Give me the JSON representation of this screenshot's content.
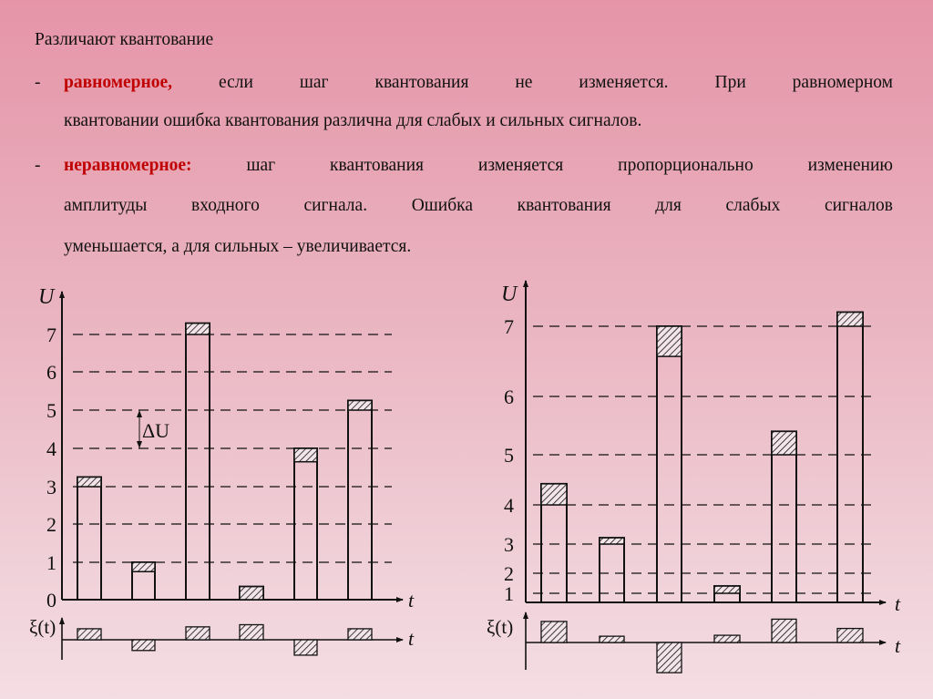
{
  "text": {
    "intro": "Различают квантование",
    "bullet_dash": "-",
    "uniform_term": "равномерное,",
    "uniform_line1": "если шаг квантования не изменяется. При равномерном",
    "uniform_line2": "квантовании ошибка квантования различна для слабых и сильных сигналов.",
    "nonuniform_term": "неравномерное:",
    "nonuniform_line1": "шаг квантования изменяется пропорционально изменению",
    "nonuniform_line2": "амплитуды входного сигнала. Ошибка квантования для слабых сигналов",
    "nonuniform_line3": "уменьшается, а для сильных – увеличивается."
  },
  "colors": {
    "accent": "#c00000",
    "line": "#111111"
  },
  "chart_data": [
    {
      "type": "bar",
      "title": "",
      "ylabel": "U",
      "xlabel": "t",
      "error_label": "ξ(t)",
      "step_label": "ΔU",
      "levels": [
        "0",
        "1",
        "2",
        "3",
        "4",
        "5",
        "6",
        "7"
      ],
      "quantization": "uniform",
      "signal": [
        3.25,
        0.75,
        7.3,
        0.35,
        3.65,
        5.25
      ],
      "quantized": [
        3,
        1,
        7,
        0,
        4,
        5
      ]
    },
    {
      "type": "bar",
      "title": "",
      "ylabel": "U",
      "xlabel": "t",
      "error_label": "ξ(t)",
      "levels": [
        "1",
        "2",
        "3",
        "4",
        "5",
        "6",
        "7"
      ],
      "quantization": "non-uniform",
      "signal": [
        4.42,
        3.16,
        6.57,
        1.36,
        5.4,
        7.2
      ],
      "quantized": [
        4,
        3,
        7,
        1,
        5,
        7
      ]
    }
  ]
}
